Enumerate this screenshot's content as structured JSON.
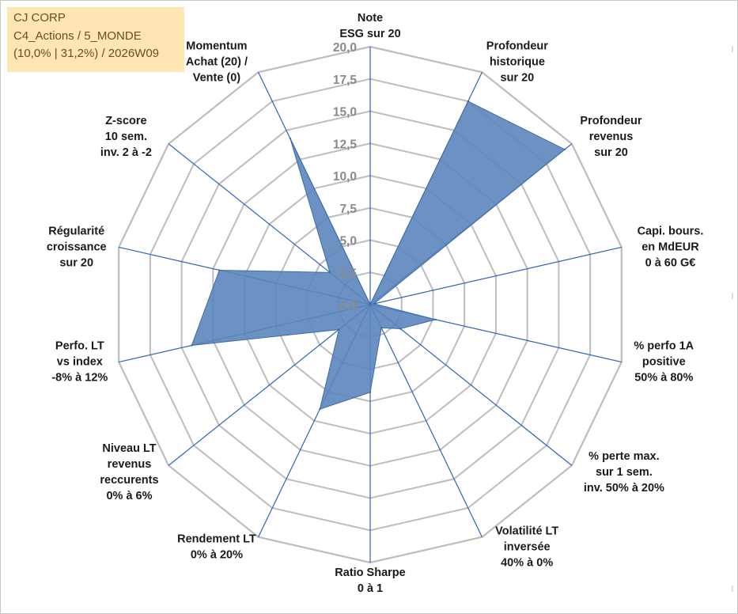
{
  "info_box": {
    "line1": "CJ CORP",
    "line2": "C4_Actions / 5_MONDE",
    "line3": "(10,0% | 31,2%) / 2026W09"
  },
  "colors": {
    "series_fill": "#5b86bc",
    "series_stroke": "#3f6aa3",
    "spoke": "#2d63b8",
    "grid": "#bdbdbd",
    "info_box_bg": "#ffe6b3"
  },
  "chart_data": {
    "type": "radar",
    "ylim": [
      0,
      20
    ],
    "tick_step": 2.5,
    "tick_labels": [
      "0,0",
      "2,5",
      "5,0",
      "7,5",
      "10,0",
      "12,5",
      "15,0",
      "17,5",
      "20,0"
    ],
    "grid": true,
    "axes": [
      {
        "label_lines": [
          "Note",
          "ESG sur 20"
        ],
        "value": 0
      },
      {
        "label_lines": [
          "Profondeur",
          "historique",
          "sur 20"
        ],
        "value": 17.5
      },
      {
        "label_lines": [
          "Profondeur",
          "revenus",
          "sur 20"
        ],
        "value": 19.3
      },
      {
        "label_lines": [
          "Capi. bours.",
          "en MdEUR",
          "0 à 60 G€"
        ],
        "value": 0.3
      },
      {
        "label_lines": [
          "% perfo 1A",
          "positive",
          "50% à 80%"
        ],
        "value": 5.2
      },
      {
        "label_lines": [
          "% perte max.",
          "sur 1 sem.",
          "inv. 50% à 20%"
        ],
        "value": 3.0
      },
      {
        "label_lines": [
          "Volatilité LT",
          "inversée",
          "40% à 0%"
        ],
        "value": 2.0
      },
      {
        "label_lines": [
          "Ratio Sharpe",
          "0 à 1"
        ],
        "value": 6.8
      },
      {
        "label_lines": [
          "Rendement LT",
          "0% à 20%"
        ],
        "value": 9.0
      },
      {
        "label_lines": [
          "Niveau LT",
          "revenus",
          "reccurents",
          "0% à 6%"
        ],
        "value": 3.1
      },
      {
        "label_lines": [
          "Perfo. LT",
          "vs index",
          "-8% à 12%"
        ],
        "value": 14.2
      },
      {
        "label_lines": [
          "Régularité",
          "croissance",
          "sur 20"
        ],
        "value": 12.0
      },
      {
        "label_lines": [
          "Z-score",
          "10 sem.",
          "inv. 2 à -2"
        ],
        "value": 4.0
      },
      {
        "label_lines": [
          "Momentum",
          "Achat (20) /",
          "Vente (0)"
        ],
        "value": 14.3
      }
    ]
  }
}
